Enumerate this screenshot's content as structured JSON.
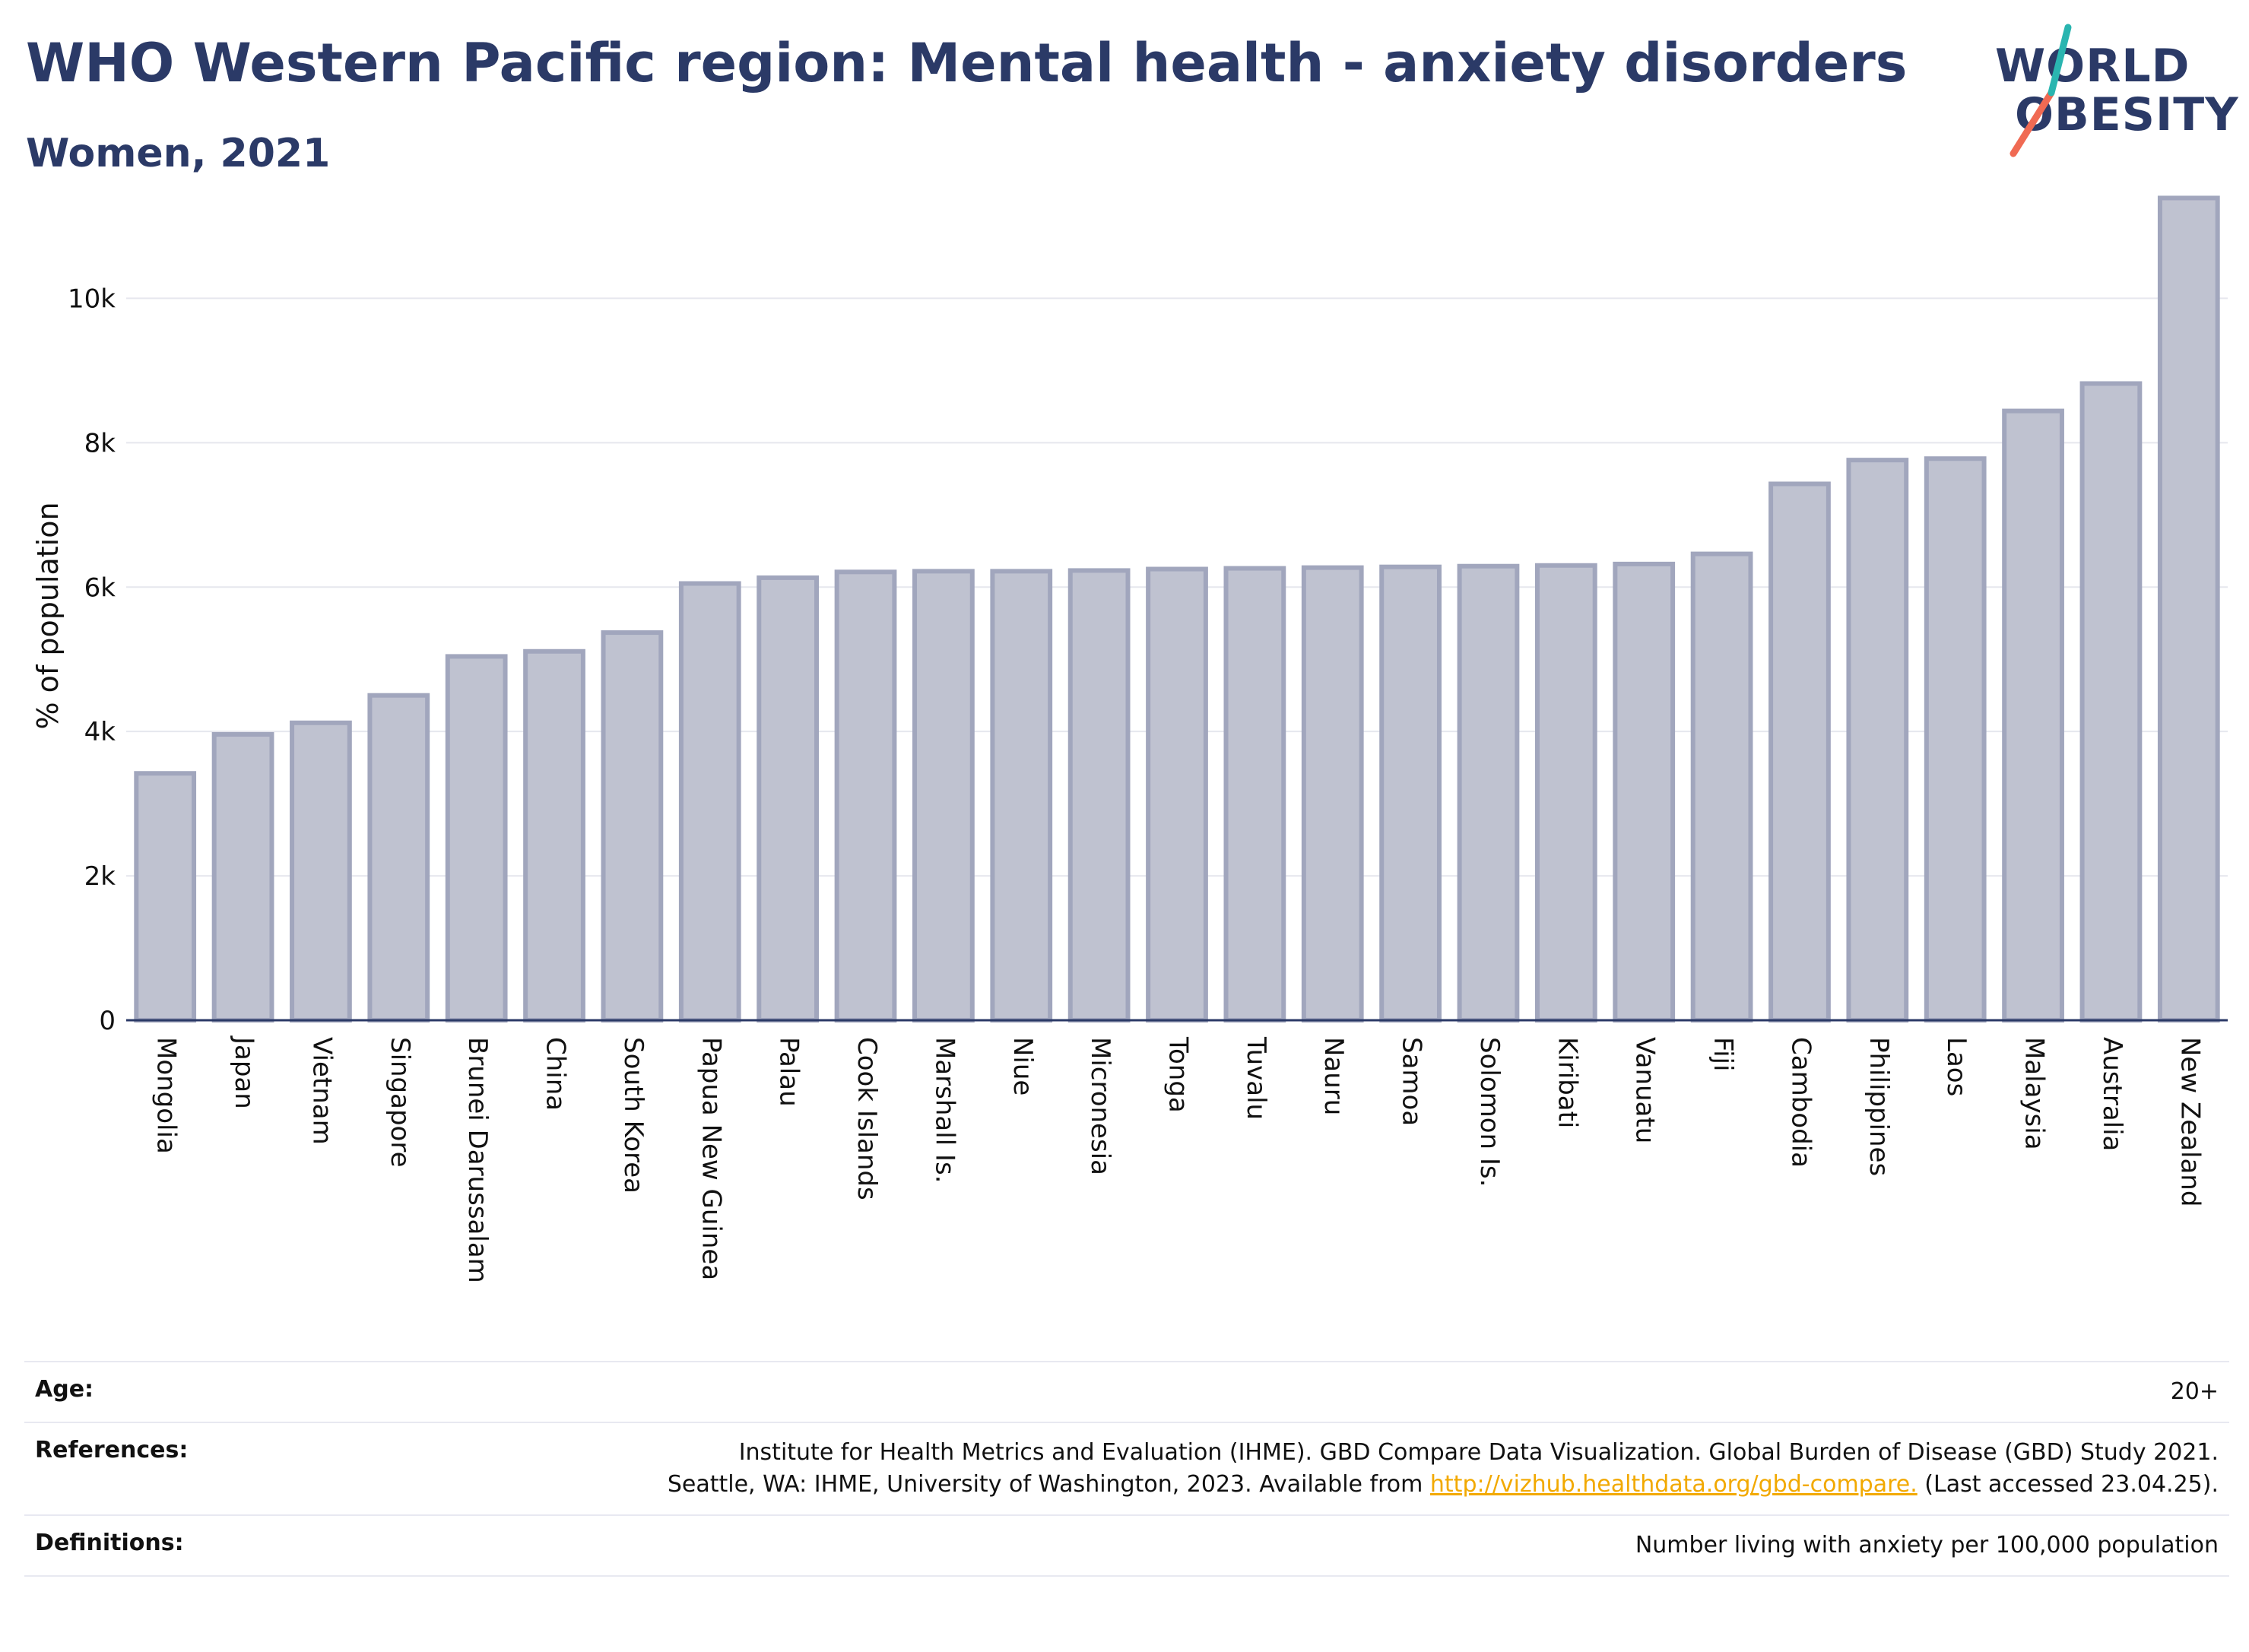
{
  "header": {
    "title": "WHO Western Pacific region: Mental health - anxiety disorders",
    "subtitle": "Women, 2021"
  },
  "logo": {
    "line1": "WORLD",
    "line2": "OBESITY",
    "text_color": "#2b3a67",
    "accent_colors": [
      "#f06a53",
      "#2ab5b0"
    ]
  },
  "chart_data": {
    "type": "bar",
    "title": "",
    "xlabel": "",
    "ylabel": "% of population",
    "ylim": [
      0,
      11500
    ],
    "yticks": [
      0,
      2000,
      4000,
      6000,
      8000,
      10000
    ],
    "ytick_labels": [
      "0",
      "2k",
      "4k",
      "6k",
      "8k",
      "10k"
    ],
    "grid": true,
    "bar_fill": "#bfc2d0",
    "bar_stroke": "#a1a6bd",
    "categories": [
      "Mongolia",
      "Japan",
      "Vietnam",
      "Singapore",
      "Brunei Darussalam",
      "China",
      "South Korea",
      "Papua New Guinea",
      "Palau",
      "Cook Islands",
      "Marshall Is.",
      "Niue",
      "Micronesia",
      "Tonga",
      "Tuvalu",
      "Nauru",
      "Samoa",
      "Solomon Is.",
      "Kiribati",
      "Vanuatu",
      "Fiji",
      "Cambodia",
      "Philippines",
      "Laos",
      "Malaysia",
      "Australia",
      "New Zealand"
    ],
    "values": [
      3420,
      3960,
      4120,
      4500,
      5040,
      5110,
      5370,
      6050,
      6130,
      6210,
      6220,
      6220,
      6230,
      6250,
      6260,
      6270,
      6280,
      6290,
      6300,
      6320,
      6460,
      7430,
      7760,
      7780,
      8440,
      8820,
      11390
    ]
  },
  "meta": {
    "age_label": "Age:",
    "age_value": "20+",
    "references_label": "References:",
    "references_text_before": "Institute for Health Metrics and Evaluation (IHME). GBD Compare Data Visualization. Global Burden of Disease (GBD) Study 2021. Seattle, WA: IHME, University of Washington, 2023. Available from ",
    "references_link": "http://vizhub.healthdata.org/gbd-compare.",
    "references_text_after": " (Last accessed 23.04.25).",
    "definitions_label": "Definitions:",
    "definitions_value": "Number living with anxiety per 100,000 population"
  }
}
